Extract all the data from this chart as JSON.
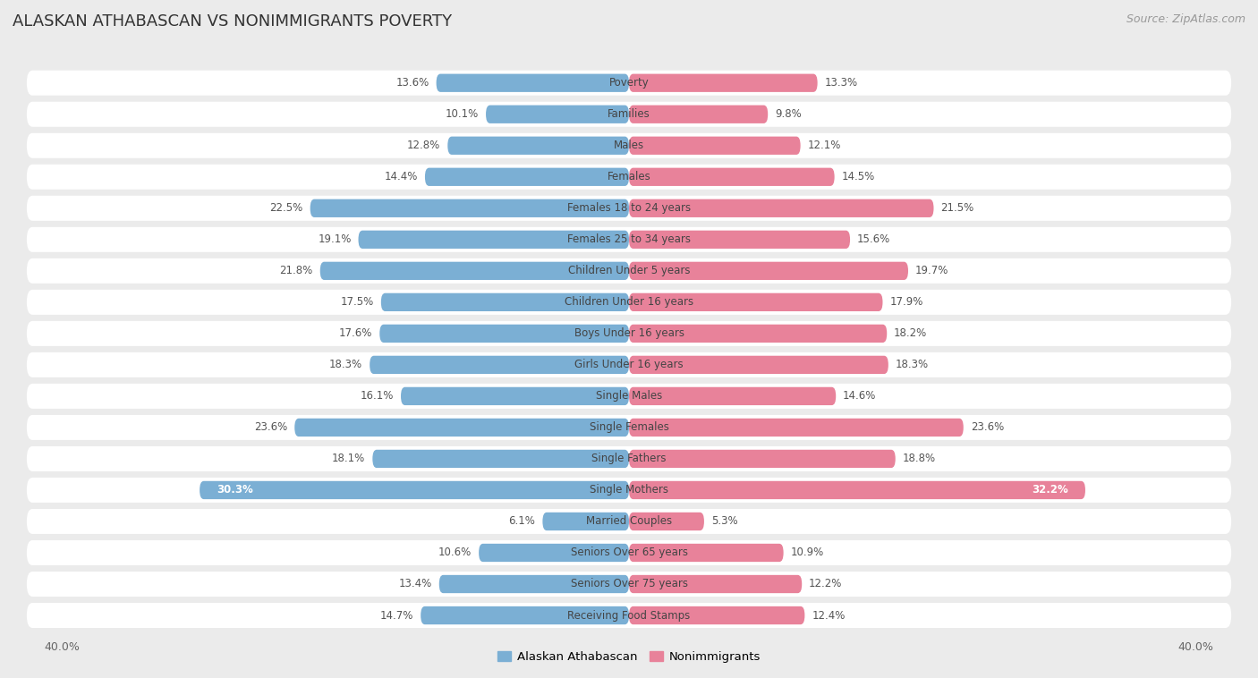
{
  "title": "ALASKAN ATHABASCAN VS NONIMMIGRANTS POVERTY",
  "source": "Source: ZipAtlas.com",
  "categories": [
    "Poverty",
    "Families",
    "Males",
    "Females",
    "Females 18 to 24 years",
    "Females 25 to 34 years",
    "Children Under 5 years",
    "Children Under 16 years",
    "Boys Under 16 years",
    "Girls Under 16 years",
    "Single Males",
    "Single Females",
    "Single Fathers",
    "Single Mothers",
    "Married Couples",
    "Seniors Over 65 years",
    "Seniors Over 75 years",
    "Receiving Food Stamps"
  ],
  "left_values": [
    13.6,
    10.1,
    12.8,
    14.4,
    22.5,
    19.1,
    21.8,
    17.5,
    17.6,
    18.3,
    16.1,
    23.6,
    18.1,
    30.3,
    6.1,
    10.6,
    13.4,
    14.7
  ],
  "right_values": [
    13.3,
    9.8,
    12.1,
    14.5,
    21.5,
    15.6,
    19.7,
    17.9,
    18.2,
    18.3,
    14.6,
    23.6,
    18.8,
    32.2,
    5.3,
    10.9,
    12.2,
    12.4
  ],
  "left_color": "#7BAFD4",
  "right_color": "#E8829A",
  "left_label": "Alaskan Athabascan",
  "right_label": "Nonimmigrants",
  "background_color": "#ebebeb",
  "row_color": "#ffffff",
  "xlim": 40.0,
  "title_fontsize": 13,
  "source_fontsize": 9,
  "bar_height": 0.58,
  "label_fontsize": 8.5,
  "cat_fontsize": 8.5
}
